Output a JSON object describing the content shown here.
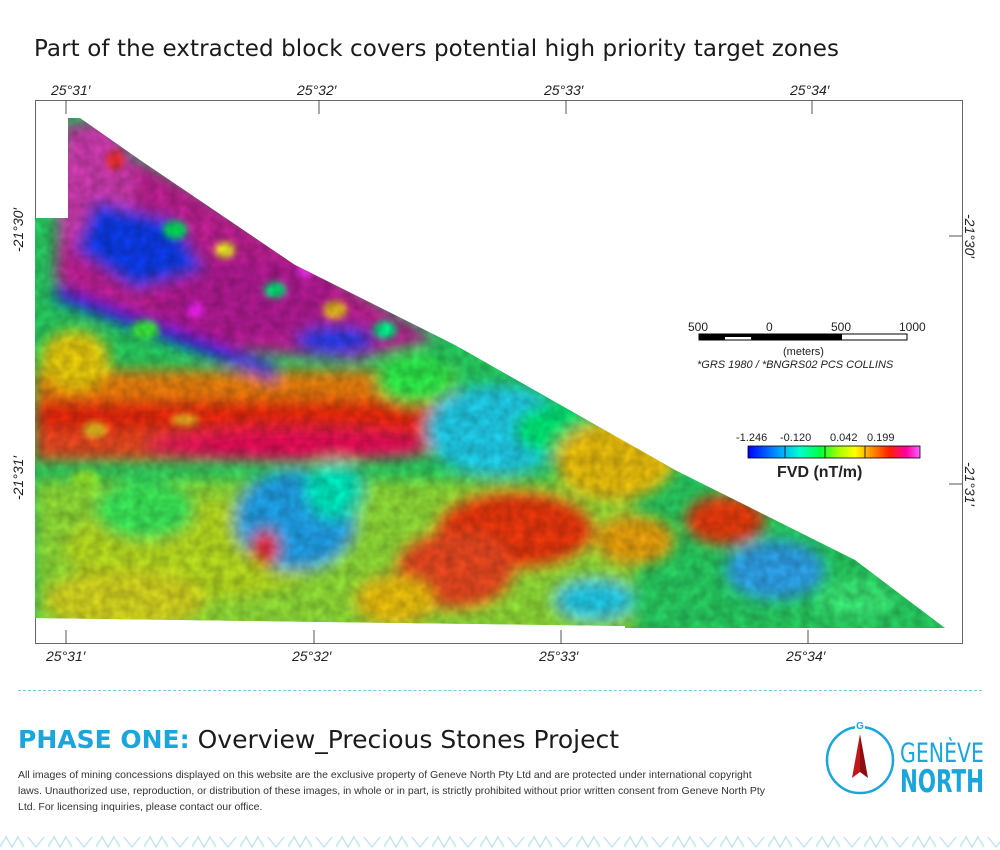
{
  "title": "Part of the extracted block covers potential high priority target zones",
  "map": {
    "top_ticks": [
      "25°31′",
      "25°32′",
      "25°33′",
      "25°34′"
    ],
    "bottom_ticks": [
      "25°31′",
      "25°32′",
      "25°33′",
      "25°34′"
    ],
    "left_ticks": [
      "-21°30′",
      "-21°31′"
    ],
    "right_ticks": [
      "-21°30′",
      "-21°31′"
    ],
    "scale_bar": {
      "labels": [
        "500",
        "0",
        "500",
        "1000"
      ],
      "unit": "(meters)",
      "projection": "*GRS 1980 / *BNGRS02 PCS COLLINS"
    },
    "legend": {
      "values": [
        "-1.246",
        "-0.120",
        "0.042",
        "0.199"
      ],
      "label": "FVD (nT/m)",
      "colors": [
        "#0000ff",
        "#00a0ff",
        "#00ffd0",
        "#00ff40",
        "#a0ff00",
        "#ffff00",
        "#ff9000",
        "#ff2000",
        "#ff00a0",
        "#ff60ff"
      ]
    }
  },
  "phase": {
    "label": "PHASE ONE:",
    "name": "Overview_Precious Stones Project"
  },
  "legal": "All images of mining concessions displayed on this website are the exclusive property of Geneve North Pty Ltd and are protected under international copyright laws. Unauthorized use, reproduction, or distribution of these images, in whole or in part, is strictly prohibited without prior written consent from Geneve North Pty Ltd. For licensing inquiries, please contact our office.",
  "logo": {
    "top": "GENÈVE",
    "bottom": "NORTH",
    "mark": "G",
    "color": "#1aa6dc"
  }
}
